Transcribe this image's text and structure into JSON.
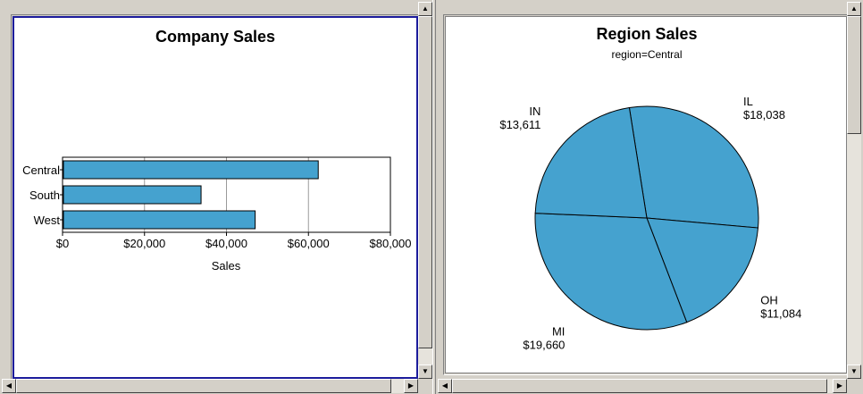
{
  "left_pane": {
    "chart_data": {
      "type": "bar",
      "orientation": "horizontal",
      "title": "Company Sales",
      "xlabel": "Sales",
      "categories": [
        "Central",
        "South",
        "West"
      ],
      "values": [
        62393,
        33800,
        47000
      ],
      "xlim": [
        0,
        80000
      ],
      "ticks": [
        "$0",
        "$20,000",
        "$40,000",
        "$60,000",
        "$80,000"
      ],
      "tick_values": [
        0,
        20000,
        40000,
        60000,
        80000
      ],
      "grid": true,
      "bar_color": "#45a2cf"
    }
  },
  "right_pane": {
    "chart_data": {
      "type": "pie",
      "title": "Region Sales",
      "subtitle": "region=Central",
      "slices": [
        {
          "name": "IL",
          "value_label": "$18,038",
          "value": 18038
        },
        {
          "name": "OH",
          "value_label": "$11,084",
          "value": 11084
        },
        {
          "name": "MI",
          "value_label": "$19,660",
          "value": 19660
        },
        {
          "name": "IN",
          "value_label": "$13,611",
          "value": 13611
        }
      ],
      "slice_color": "#45a2cf"
    }
  },
  "icons": {
    "arrow_up": "▲",
    "arrow_down": "▼",
    "arrow_left": "◀",
    "arrow_right": "▶"
  }
}
